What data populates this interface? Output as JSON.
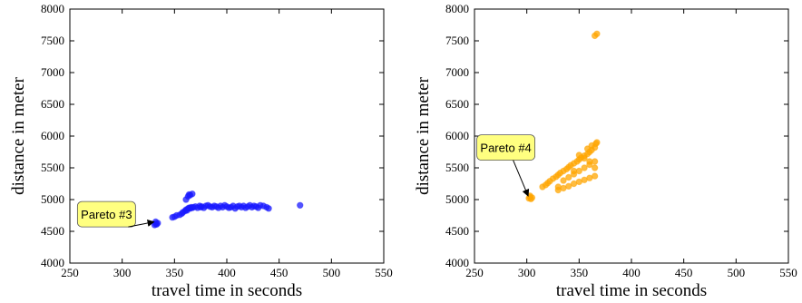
{
  "chart_data": [
    {
      "type": "scatter",
      "title": "",
      "xlabel": "travel time in seconds",
      "ylabel": "distance in meter",
      "xlim": [
        250,
        550
      ],
      "ylim": [
        4000,
        8000
      ],
      "xticks": [
        250,
        300,
        350,
        400,
        450,
        500,
        550
      ],
      "yticks": [
        4000,
        4500,
        5000,
        5500,
        6000,
        6500,
        7000,
        7500,
        8000
      ],
      "grid": false,
      "color": "#1a1aff",
      "annotation": {
        "text": "Pareto #3",
        "target": [
          332,
          4620
        ],
        "label_anchor": [
          285,
          4770
        ]
      },
      "series": [
        {
          "x": [
            331,
            332,
            333,
            334,
            332,
            348,
            350,
            352,
            355,
            357,
            358,
            360,
            361,
            362,
            363,
            364,
            365,
            366,
            367,
            368,
            370,
            372,
            374,
            375,
            376,
            378,
            380,
            382,
            384,
            386,
            388,
            390,
            392,
            394,
            396,
            398,
            400,
            402,
            404,
            406,
            408,
            410,
            412,
            414,
            416,
            418,
            420,
            422,
            424,
            426,
            428,
            430,
            432,
            435,
            438,
            440,
            365,
            367,
            363,
            361,
            364,
            470
          ],
          "y": [
            4600,
            4620,
            4610,
            4630,
            4650,
            4720,
            4730,
            4750,
            4760,
            4780,
            4800,
            4820,
            4840,
            4830,
            4860,
            4870,
            4860,
            4880,
            4870,
            4880,
            4890,
            4870,
            4900,
            4880,
            4890,
            4870,
            4900,
            4910,
            4890,
            4880,
            4900,
            4890,
            4870,
            4900,
            4880,
            4910,
            4890,
            4870,
            4880,
            4900,
            4860,
            4890,
            4900,
            4880,
            4900,
            4870,
            4890,
            4910,
            4880,
            4900,
            4890,
            4870,
            4910,
            4900,
            4880,
            4860,
            5070,
            5090,
            5050,
            5000,
            5080,
            4910
          ]
        }
      ]
    },
    {
      "type": "scatter",
      "title": "",
      "xlabel": "travel time in seconds",
      "ylabel": "distance in meter",
      "xlim": [
        250,
        550
      ],
      "ylim": [
        4000,
        8000
      ],
      "xticks": [
        250,
        300,
        350,
        400,
        450,
        500,
        550
      ],
      "yticks": [
        4000,
        4500,
        5000,
        5500,
        6000,
        6500,
        7000,
        7500,
        8000
      ],
      "grid": false,
      "color": "#ffa500",
      "annotation": {
        "text": "Pareto #4",
        "target": [
          303,
          5030
        ],
        "label_anchor": [
          280,
          5820
        ]
      },
      "series": [
        {
          "x": [
            302,
            303,
            304,
            305,
            303,
            315,
            318,
            320,
            322,
            325,
            328,
            330,
            332,
            335,
            338,
            340,
            342,
            345,
            348,
            350,
            352,
            355,
            358,
            360,
            362,
            365,
            367,
            330,
            335,
            340,
            345,
            350,
            355,
            360,
            365,
            340,
            345,
            350,
            355,
            360,
            365,
            350,
            355,
            360,
            365,
            358,
            362,
            366,
            330,
            335,
            345,
            365,
            367
          ],
          "y": [
            5020,
            5040,
            5010,
            5030,
            5060,
            5200,
            5230,
            5260,
            5290,
            5330,
            5360,
            5390,
            5420,
            5450,
            5480,
            5510,
            5540,
            5570,
            5600,
            5630,
            5660,
            5690,
            5720,
            5750,
            5780,
            5820,
            5900,
            5150,
            5180,
            5210,
            5250,
            5280,
            5310,
            5340,
            5370,
            5350,
            5400,
            5450,
            5500,
            5550,
            5600,
            5700,
            5650,
            5600,
            5500,
            5800,
            5850,
            5880,
            5200,
            5300,
            5450,
            7580,
            7610
          ]
        }
      ]
    }
  ]
}
